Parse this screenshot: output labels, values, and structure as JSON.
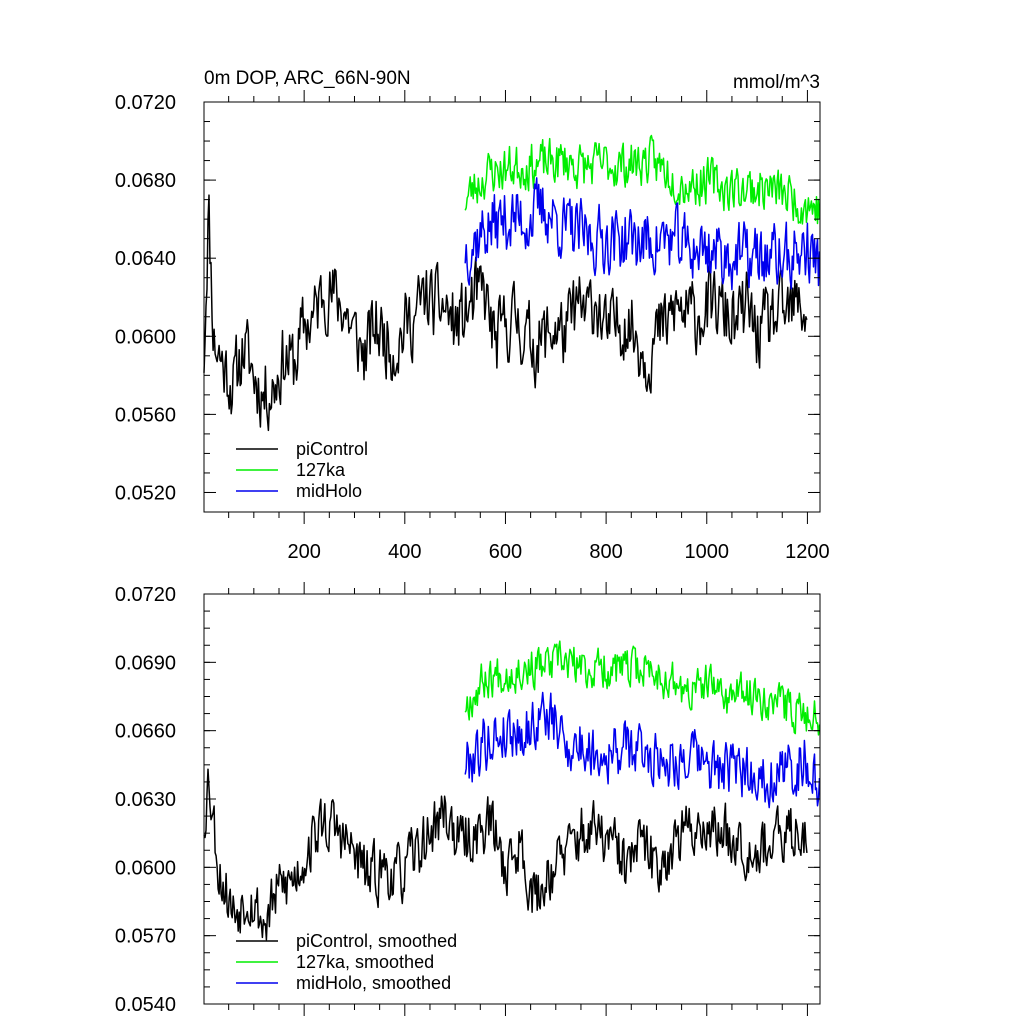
{
  "chart_data": [
    {
      "type": "line",
      "title_left": "0m DOP, ARC_66N-90N",
      "title_right": "mmol/m^3",
      "xlim": [
        1,
        1225
      ],
      "ylim": [
        0.051,
        0.072
      ],
      "yticks": [
        0.052,
        0.056,
        0.06,
        0.064,
        0.068,
        0.072
      ],
      "ytick_labels": [
        "0.0520",
        "0.0560",
        "0.0600",
        "0.0640",
        "0.0680",
        "0.0720"
      ],
      "xticks": [
        200,
        400,
        600,
        800,
        1000,
        1200
      ],
      "xtick_labels": [
        "200",
        "400",
        "600",
        "800",
        "1000",
        "1200"
      ],
      "legend": [
        "piControl",
        "127ka",
        "midHolo"
      ],
      "legend_position": "bottom-left",
      "series": [
        {
          "name": "piControl",
          "color": "#000000",
          "x_start": 1,
          "x_end": 1200,
          "anchors": [
            [
              1,
              0.059
            ],
            [
              10,
              0.0668
            ],
            [
              20,
              0.06
            ],
            [
              40,
              0.0585
            ],
            [
              60,
              0.0575
            ],
            [
              80,
              0.0595
            ],
            [
              100,
              0.058
            ],
            [
              120,
              0.057
            ],
            [
              140,
              0.0575
            ],
            [
              160,
              0.059
            ],
            [
              180,
              0.0585
            ],
            [
              200,
              0.0605
            ],
            [
              220,
              0.061
            ],
            [
              240,
              0.0625
            ],
            [
              260,
              0.062
            ],
            [
              280,
              0.0615
            ],
            [
              300,
              0.06
            ],
            [
              320,
              0.059
            ],
            [
              340,
              0.0605
            ],
            [
              360,
              0.06
            ],
            [
              380,
              0.0595
            ],
            [
              400,
              0.0605
            ],
            [
              420,
              0.061
            ],
            [
              440,
              0.062
            ],
            [
              460,
              0.0615
            ],
            [
              480,
              0.0615
            ],
            [
              500,
              0.0605
            ],
            [
              520,
              0.061
            ],
            [
              540,
              0.062
            ],
            [
              560,
              0.062
            ],
            [
              580,
              0.0595
            ],
            [
              600,
              0.0605
            ],
            [
              620,
              0.061
            ],
            [
              640,
              0.06
            ],
            [
              660,
              0.0595
            ],
            [
              680,
              0.06
            ],
            [
              700,
              0.0605
            ],
            [
              720,
              0.06
            ],
            [
              740,
              0.0615
            ],
            [
              760,
              0.061
            ],
            [
              780,
              0.062
            ],
            [
              800,
              0.06
            ],
            [
              820,
              0.0605
            ],
            [
              840,
              0.061
            ],
            [
              860,
              0.06
            ],
            [
              880,
              0.059
            ],
            [
              900,
              0.06
            ],
            [
              920,
              0.0605
            ],
            [
              940,
              0.0615
            ],
            [
              960,
              0.061
            ],
            [
              980,
              0.061
            ],
            [
              1000,
              0.0615
            ],
            [
              1020,
              0.0615
            ],
            [
              1040,
              0.061
            ],
            [
              1060,
              0.0605
            ],
            [
              1080,
              0.0615
            ],
            [
              1100,
              0.06
            ],
            [
              1120,
              0.0605
            ],
            [
              1140,
              0.061
            ],
            [
              1160,
              0.061
            ],
            [
              1180,
              0.0615
            ],
            [
              1200,
              0.0613
            ]
          ],
          "noise": 0.00165,
          "seed": 11
        },
        {
          "name": "127ka",
          "color": "#00ee00",
          "x_start": 520,
          "x_end": 1225,
          "anchors": [
            [
              520,
              0.067
            ],
            [
              560,
              0.0683
            ],
            [
              600,
              0.0686
            ],
            [
              640,
              0.0688
            ],
            [
              680,
              0.0688
            ],
            [
              720,
              0.069
            ],
            [
              760,
              0.0686
            ],
            [
              800,
              0.0688
            ],
            [
              840,
              0.0688
            ],
            [
              880,
              0.069
            ],
            [
              920,
              0.0685
            ],
            [
              960,
              0.0678
            ],
            [
              1000,
              0.068
            ],
            [
              1040,
              0.0676
            ],
            [
              1080,
              0.0676
            ],
            [
              1120,
              0.0676
            ],
            [
              1160,
              0.0672
            ],
            [
              1200,
              0.0668
            ],
            [
              1225,
              0.0665
            ]
          ],
          "noise": 0.00105,
          "seed": 23
        },
        {
          "name": "midHolo",
          "color": "#0000ee",
          "x_start": 520,
          "x_end": 1225,
          "anchors": [
            [
              520,
              0.0645
            ],
            [
              560,
              0.0655
            ],
            [
              600,
              0.066
            ],
            [
              640,
              0.066
            ],
            [
              680,
              0.0665
            ],
            [
              720,
              0.0655
            ],
            [
              760,
              0.065
            ],
            [
              800,
              0.065
            ],
            [
              840,
              0.065
            ],
            [
              880,
              0.0648
            ],
            [
              920,
              0.065
            ],
            [
              960,
              0.0645
            ],
            [
              1000,
              0.0645
            ],
            [
              1040,
              0.0642
            ],
            [
              1080,
              0.064
            ],
            [
              1120,
              0.064
            ],
            [
              1160,
              0.064
            ],
            [
              1200,
              0.0645
            ],
            [
              1225,
              0.0635
            ]
          ],
          "noise": 0.0015,
          "seed": 37
        }
      ]
    },
    {
      "type": "line",
      "xlim": [
        1,
        1225
      ],
      "ylim": [
        0.054,
        0.072
      ],
      "yticks": [
        0.054,
        0.057,
        0.06,
        0.063,
        0.066,
        0.069,
        0.072
      ],
      "ytick_labels": [
        "0.0540",
        "0.0570",
        "0.0600",
        "0.0630",
        "0.0660",
        "0.0690",
        "0.0720"
      ],
      "xticks": [
        200,
        400,
        600,
        800,
        1000,
        1200
      ],
      "legend": [
        "piControl, smoothed",
        "127ka, smoothed",
        "midHolo, smoothed"
      ],
      "legend_position": "bottom-left",
      "series": [
        {
          "name": "piControl, smoothed",
          "color": "#000000",
          "x_start": 1,
          "x_end": 1200,
          "anchors": [
            [
              1,
              0.062
            ],
            [
              10,
              0.0642
            ],
            [
              30,
              0.06
            ],
            [
              60,
              0.058
            ],
            [
              90,
              0.059
            ],
            [
              120,
              0.0575
            ],
            [
              150,
              0.059
            ],
            [
              180,
              0.0595
            ],
            [
              210,
              0.061
            ],
            [
              240,
              0.062
            ],
            [
              270,
              0.0615
            ],
            [
              300,
              0.0605
            ],
            [
              330,
              0.0595
            ],
            [
              360,
              0.06
            ],
            [
              390,
              0.0595
            ],
            [
              420,
              0.0605
            ],
            [
              450,
              0.0615
            ],
            [
              480,
              0.0625
            ],
            [
              510,
              0.061
            ],
            [
              540,
              0.0615
            ],
            [
              570,
              0.062
            ],
            [
              600,
              0.06
            ],
            [
              630,
              0.061
            ],
            [
              660,
              0.0585
            ],
            [
              690,
              0.06
            ],
            [
              720,
              0.0605
            ],
            [
              750,
              0.0615
            ],
            [
              780,
              0.0615
            ],
            [
              810,
              0.061
            ],
            [
              840,
              0.06
            ],
            [
              870,
              0.061
            ],
            [
              900,
              0.06
            ],
            [
              930,
              0.061
            ],
            [
              960,
              0.0615
            ],
            [
              990,
              0.062
            ],
            [
              1020,
              0.0615
            ],
            [
              1050,
              0.0615
            ],
            [
              1080,
              0.061
            ],
            [
              1110,
              0.061
            ],
            [
              1140,
              0.061
            ],
            [
              1170,
              0.0615
            ],
            [
              1200,
              0.0618
            ]
          ],
          "noise": 0.00115,
          "seed": 53
        },
        {
          "name": "127ka, smoothed",
          "color": "#00ee00",
          "x_start": 520,
          "x_end": 1225,
          "anchors": [
            [
              520,
              0.0672
            ],
            [
              560,
              0.0683
            ],
            [
              600,
              0.0686
            ],
            [
              640,
              0.0688
            ],
            [
              680,
              0.0688
            ],
            [
              720,
              0.069
            ],
            [
              760,
              0.0686
            ],
            [
              800,
              0.0688
            ],
            [
              840,
              0.0686
            ],
            [
              880,
              0.0688
            ],
            [
              920,
              0.0683
            ],
            [
              960,
              0.0676
            ],
            [
              1000,
              0.068
            ],
            [
              1040,
              0.0675
            ],
            [
              1080,
              0.0676
            ],
            [
              1120,
              0.0675
            ],
            [
              1160,
              0.067
            ],
            [
              1200,
              0.0668
            ],
            [
              1225,
              0.0666
            ]
          ],
          "noise": 0.0008,
          "seed": 67
        },
        {
          "name": "midHolo, smoothed",
          "color": "#0000ee",
          "x_start": 520,
          "x_end": 1225,
          "anchors": [
            [
              520,
              0.0646
            ],
            [
              560,
              0.0655
            ],
            [
              600,
              0.066
            ],
            [
              640,
              0.066
            ],
            [
              680,
              0.0668
            ],
            [
              720,
              0.0655
            ],
            [
              760,
              0.0652
            ],
            [
              800,
              0.065
            ],
            [
              840,
              0.0652
            ],
            [
              880,
              0.065
            ],
            [
              920,
              0.0648
            ],
            [
              960,
              0.0648
            ],
            [
              1000,
              0.0645
            ],
            [
              1040,
              0.0642
            ],
            [
              1080,
              0.0642
            ],
            [
              1120,
              0.064
            ],
            [
              1160,
              0.0642
            ],
            [
              1200,
              0.0648
            ],
            [
              1225,
              0.063
            ]
          ],
          "noise": 0.0011,
          "seed": 79
        }
      ]
    }
  ]
}
